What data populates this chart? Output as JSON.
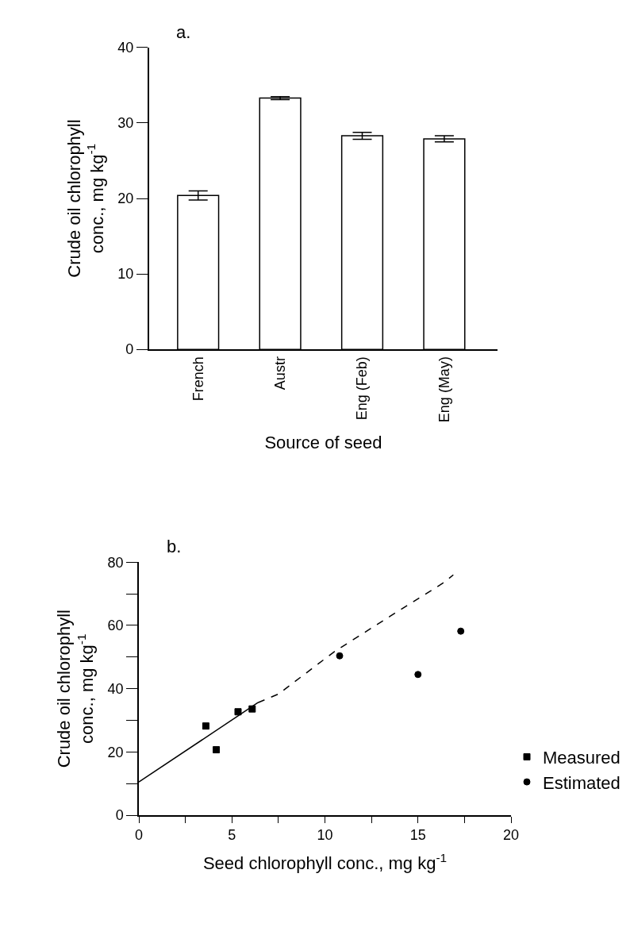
{
  "chart_data": [
    {
      "type": "bar",
      "title": "a.",
      "xlabel": "Source of seed",
      "ylabel": "Crude oil chlorophyll conc., mg kg$^{-1}$",
      "categories": [
        "French",
        "Austr",
        "Eng (Feb)",
        "Eng (May)"
      ],
      "values": [
        20.4,
        33.3,
        28.3,
        27.9
      ],
      "errors": [
        0.6,
        0.2,
        0.45,
        0.4
      ],
      "color": "#ffffff",
      "ylim": [
        0,
        40
      ],
      "yticks": [
        0,
        10,
        20,
        30,
        40
      ]
    },
    {
      "type": "scatter",
      "title": "b.",
      "xlabel": "Seed chlorophyll conc., mg kg$^{-1}$",
      "ylabel": "Crude oil chlorophyll conc., mg kg$^{-1}$",
      "series": [
        {
          "name": "Measured",
          "color": "#000000",
          "marker": "square",
          "x": [
            3.6,
            4.16,
            5.33,
            6.09
          ],
          "values": [
            28.2,
            20.7,
            32.7,
            33.6
          ]
        },
        {
          "name": "Estimated",
          "color": "#000000",
          "marker": "circle",
          "x": [
            10.79,
            15.0,
            17.3
          ],
          "values": [
            50.4,
            44.5,
            58.2
          ]
        },
        {
          "type": "line",
          "color": "#000000",
          "line_style": "solid",
          "x": [
            0,
            6.4
          ],
          "values": [
            10.5,
            35.6
          ]
        },
        {
          "type": "line",
          "color": "#000000",
          "line_style": "dashed",
          "x": [
            6.4,
            7.5,
            10.5,
            13.5,
            16.4,
            16.9
          ],
          "values": [
            35.6,
            38.3,
            51.7,
            62.9,
            73.6,
            76
          ]
        }
      ],
      "xlim": [
        0,
        20
      ],
      "xticks": [
        0,
        {
          "value": 2.5,
          "label": null
        },
        5,
        {
          "value": 7.5,
          "label": null
        },
        10,
        {
          "value": 12.5,
          "label": null
        },
        15,
        {
          "value": 17.5,
          "label": null
        },
        20
      ],
      "ylim": [
        0,
        80
      ],
      "yticks": [
        0,
        {
          "value": 10,
          "label": null
        },
        20,
        {
          "value": 30,
          "label": null
        },
        40,
        {
          "value": 50,
          "label": null
        },
        60,
        {
          "value": 70,
          "label": null
        },
        80
      ],
      "legend": "right"
    }
  ]
}
